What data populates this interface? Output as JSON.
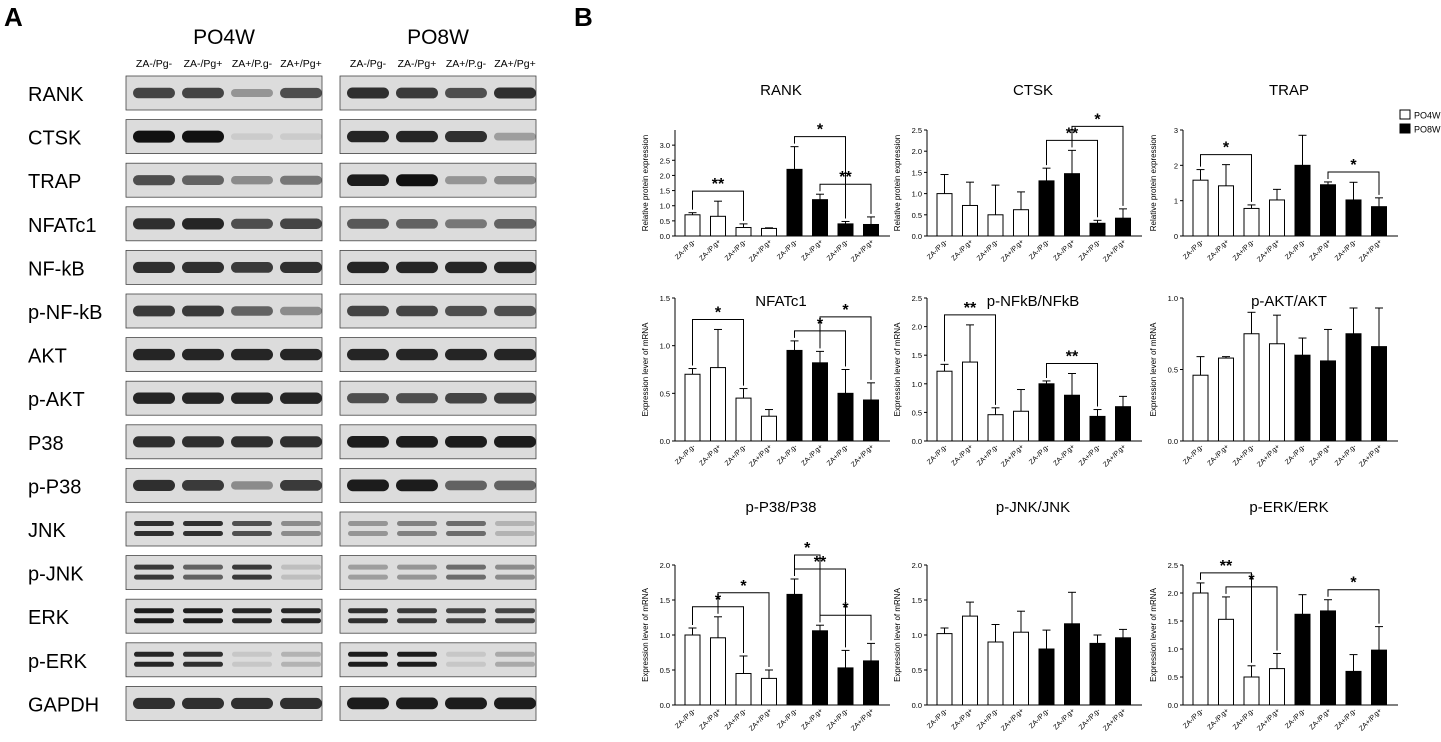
{
  "panels": {
    "a": "A",
    "b": "B"
  },
  "blot": {
    "groups": [
      {
        "title": "PO4W",
        "lanes": [
          "ZA-/Pg-",
          "ZA-/Pg+",
          "ZA+/P.g-",
          "ZA+/Pg+"
        ]
      },
      {
        "title": "PO8W",
        "lanes": [
          "ZA-/Pg-",
          "ZA-/Pg+",
          "ZA+/P.g-",
          "ZA+/Pg+"
        ]
      }
    ],
    "rows": [
      {
        "label": "RANK",
        "w4": [
          0.75,
          0.75,
          0.35,
          0.7
        ],
        "w8": [
          0.85,
          0.8,
          0.7,
          0.85
        ]
      },
      {
        "label": "CTSK",
        "w4": [
          1.0,
          1.0,
          0.08,
          0.08
        ],
        "w8": [
          0.9,
          0.9,
          0.85,
          0.3
        ]
      },
      {
        "label": "TRAP",
        "w4": [
          0.7,
          0.6,
          0.4,
          0.5
        ],
        "w8": [
          0.95,
          1.0,
          0.35,
          0.4
        ]
      },
      {
        "label": "NFATc1",
        "w4": [
          0.85,
          0.9,
          0.7,
          0.75
        ],
        "w8": [
          0.65,
          0.6,
          0.5,
          0.6
        ]
      },
      {
        "label": "NF-kB",
        "w4": [
          0.85,
          0.85,
          0.8,
          0.85
        ],
        "w8": [
          0.9,
          0.9,
          0.9,
          0.9
        ]
      },
      {
        "label": "p-NF-kB",
        "w4": [
          0.8,
          0.8,
          0.6,
          0.4
        ],
        "w8": [
          0.75,
          0.75,
          0.7,
          0.7
        ]
      },
      {
        "label": "AKT",
        "w4": [
          0.9,
          0.9,
          0.9,
          0.9
        ],
        "w8": [
          0.9,
          0.9,
          0.9,
          0.9
        ]
      },
      {
        "label": "p-AKT",
        "w4": [
          0.9,
          0.9,
          0.9,
          0.9
        ],
        "w8": [
          0.7,
          0.7,
          0.75,
          0.8
        ]
      },
      {
        "label": "P38",
        "w4": [
          0.85,
          0.85,
          0.85,
          0.85
        ],
        "w8": [
          0.95,
          0.95,
          0.95,
          0.95
        ]
      },
      {
        "label": "p-P38",
        "w4": [
          0.85,
          0.8,
          0.4,
          0.8
        ],
        "w8": [
          0.95,
          0.95,
          0.6,
          0.6
        ]
      },
      {
        "label": "JNK",
        "w4": [
          0.85,
          0.85,
          0.7,
          0.4
        ],
        "w8": [
          0.35,
          0.45,
          0.55,
          0.2
        ]
      },
      {
        "label": "p-JNK",
        "w4": [
          0.8,
          0.6,
          0.8,
          0.15
        ],
        "w8": [
          0.3,
          0.35,
          0.55,
          0.4
        ]
      },
      {
        "label": "ERK",
        "w4": [
          0.95,
          0.95,
          0.9,
          0.9
        ],
        "w8": [
          0.85,
          0.8,
          0.75,
          0.75
        ]
      },
      {
        "label": "p-ERK",
        "w4": [
          0.9,
          0.85,
          0.1,
          0.2
        ],
        "w8": [
          0.95,
          0.95,
          0.1,
          0.25
        ]
      },
      {
        "label": "GAPDH",
        "w4": [
          0.85,
          0.85,
          0.85,
          0.85
        ],
        "w8": [
          0.95,
          0.95,
          0.95,
          0.95
        ]
      }
    ]
  },
  "legend": [
    {
      "label": "PO4W",
      "fill": "#ffffff"
    },
    {
      "label": "PO8W",
      "fill": "#000000"
    }
  ],
  "chart_data": [
    {
      "type": "bar",
      "title": "RANK",
      "ylabel": "Relative protein expression",
      "categories": [
        "ZA-/P.g-",
        "ZA-/P.g+",
        "ZA+/P.g-",
        "ZA+/P.g+",
        "ZA-/P.g-",
        "ZA-/P.g+",
        "ZA+/P.g-",
        "ZA+/P.g+"
      ],
      "groups": [
        "PO4W",
        "PO4W",
        "PO4W",
        "PO4W",
        "PO8W",
        "PO8W",
        "PO8W",
        "PO8W"
      ],
      "values": [
        0.7,
        0.65,
        0.28,
        0.25,
        2.2,
        1.2,
        0.4,
        0.38
      ],
      "errors": [
        0.07,
        0.5,
        0.12,
        0.02,
        0.75,
        0.18,
        0.08,
        0.25
      ],
      "ylim": [
        0,
        3.5
      ],
      "yticks": [
        "0.0",
        "0.5",
        "1.0",
        "1.5",
        "2.0",
        "2.5",
        "3.0"
      ],
      "significance": [
        {
          "from": 0,
          "to": 2,
          "label": "**"
        },
        {
          "from": 4,
          "to": 6,
          "label": "*"
        },
        {
          "from": 5,
          "to": 7,
          "label": "**"
        }
      ]
    },
    {
      "type": "bar",
      "title": "CTSK",
      "ylabel": "Relative protein expression",
      "categories": [
        "ZA-/P.g-",
        "ZA-/P.g+",
        "ZA+/P.g-",
        "ZA+/P.g+",
        "ZA-/P.g-",
        "ZA-/P.g+",
        "ZA+/P.g-",
        "ZA+/P.g+"
      ],
      "groups": [
        "PO4W",
        "PO4W",
        "PO4W",
        "PO4W",
        "PO8W",
        "PO8W",
        "PO8W",
        "PO8W"
      ],
      "values": [
        1.0,
        0.72,
        0.5,
        0.62,
        1.3,
        1.47,
        0.3,
        0.42
      ],
      "errors": [
        0.45,
        0.55,
        0.7,
        0.42,
        0.3,
        0.55,
        0.07,
        0.22
      ],
      "ylim": [
        0,
        2.5
      ],
      "yticks": [
        "0.0",
        "0.5",
        "1.0",
        "1.5",
        "2.0",
        "2.5"
      ],
      "significance": [
        {
          "from": 4,
          "to": 6,
          "label": "**"
        },
        {
          "from": 5,
          "to": 7,
          "label": "*"
        }
      ]
    },
    {
      "type": "bar",
      "title": "TRAP",
      "ylabel": "Relative protein expression",
      "categories": [
        "ZA-/P.g-",
        "ZA-/P.g+",
        "ZA+/P.g-",
        "ZA+/P.g+",
        "ZA-/P.g-",
        "ZA-/P.g+",
        "ZA+/P.g-",
        "ZA+/P.g+"
      ],
      "groups": [
        "PO4W",
        "PO4W",
        "PO4W",
        "PO4W",
        "PO8W",
        "PO8W",
        "PO8W",
        "PO8W"
      ],
      "values": [
        1.58,
        1.42,
        0.78,
        1.02,
        2.0,
        1.45,
        1.02,
        0.83
      ],
      "errors": [
        0.3,
        0.6,
        0.1,
        0.3,
        0.85,
        0.08,
        0.5,
        0.25
      ],
      "ylim": [
        0,
        3
      ],
      "yticks": [
        "0",
        "1",
        "2",
        "3"
      ],
      "significance": [
        {
          "from": 0,
          "to": 2,
          "label": "*"
        },
        {
          "from": 5,
          "to": 7,
          "label": "*"
        }
      ]
    },
    {
      "type": "bar",
      "title": "NFATc1",
      "ylabel": "Expression lever of mRNA",
      "categories": [
        "ZA-/P.g-",
        "ZA-/P.g+",
        "ZA+/P.g-",
        "ZA+/P.g+",
        "ZA-/P.g-",
        "ZA-/P.g+",
        "ZA+/P.g-",
        "ZA+/P.g+"
      ],
      "groups": [
        "PO4W",
        "PO4W",
        "PO4W",
        "PO4W",
        "PO8W",
        "PO8W",
        "PO8W",
        "PO8W"
      ],
      "values": [
        0.7,
        0.77,
        0.45,
        0.26,
        0.95,
        0.82,
        0.5,
        0.43
      ],
      "errors": [
        0.06,
        0.4,
        0.1,
        0.07,
        0.1,
        0.12,
        0.25,
        0.18
      ],
      "ylim": [
        0,
        1.5
      ],
      "yticks": [
        "0.0",
        "0.5",
        "1.0",
        "1.5"
      ],
      "significance": [
        {
          "from": 0,
          "to": 2,
          "label": "*"
        },
        {
          "from": 4,
          "to": 6,
          "label": "*"
        },
        {
          "from": 5,
          "to": 7,
          "label": "*"
        }
      ]
    },
    {
      "type": "bar",
      "title": "p-NFkB/NFkB",
      "ylabel": "Expression lever of mRNA",
      "categories": [
        "ZA-/P.g-",
        "ZA-/P.g+",
        "ZA+/P.g-",
        "ZA+/P.g+",
        "ZA-/P.g-",
        "ZA-/P.g+",
        "ZA+/P.g-",
        "ZA+/P.g+"
      ],
      "groups": [
        "PO4W",
        "PO4W",
        "PO4W",
        "PO4W",
        "PO8W",
        "PO8W",
        "PO8W",
        "PO8W"
      ],
      "values": [
        1.22,
        1.38,
        0.46,
        0.52,
        1.0,
        0.8,
        0.43,
        0.6
      ],
      "errors": [
        0.12,
        0.65,
        0.12,
        0.38,
        0.05,
        0.38,
        0.12,
        0.18
      ],
      "ylim": [
        0,
        2.5
      ],
      "yticks": [
        "0.0",
        "0.5",
        "1.0",
        "1.5",
        "2.0",
        "2.5"
      ],
      "significance": [
        {
          "from": 0,
          "to": 2,
          "label": "**"
        },
        {
          "from": 4,
          "to": 6,
          "label": "**"
        }
      ]
    },
    {
      "type": "bar",
      "title": "p-AKT/AKT",
      "ylabel": "Expression lever of mRNA",
      "categories": [
        "ZA-/P.g-",
        "ZA-/P.g+",
        "ZA+/P.g-",
        "ZA+/P.g+",
        "ZA-/P.g-",
        "ZA-/P.g+",
        "ZA+/P.g-",
        "ZA+/P.g+"
      ],
      "groups": [
        "PO4W",
        "PO4W",
        "PO4W",
        "PO4W",
        "PO8W",
        "PO8W",
        "PO8W",
        "PO8W"
      ],
      "values": [
        0.46,
        0.58,
        0.75,
        0.68,
        0.6,
        0.56,
        0.75,
        0.66
      ],
      "errors": [
        0.13,
        0.01,
        0.15,
        0.2,
        0.12,
        0.22,
        0.18,
        0.27
      ],
      "ylim": [
        0,
        1.0
      ],
      "yticks": [
        "0.0",
        "0.5",
        "1.0"
      ],
      "significance": []
    },
    {
      "type": "bar",
      "title": "p-P38/P38",
      "ylabel": "Expression lever of mRNA",
      "categories": [
        "ZA-/P.g-",
        "ZA-/P.g+",
        "ZA+/P.g-",
        "ZA+/P.g+",
        "ZA-/P.g-",
        "ZA-/P.g+",
        "ZA+/P.g-",
        "ZA+/P.g+"
      ],
      "groups": [
        "PO4W",
        "PO4W",
        "PO4W",
        "PO4W",
        "PO8W",
        "PO8W",
        "PO8W",
        "PO8W"
      ],
      "values": [
        1.0,
        0.96,
        0.45,
        0.38,
        1.58,
        1.06,
        0.53,
        0.63
      ],
      "errors": [
        0.1,
        0.3,
        0.25,
        0.12,
        0.22,
        0.08,
        0.25,
        0.25
      ],
      "ylim": [
        0,
        2.0
      ],
      "yticks": [
        "0.0",
        "0.5",
        "1.0",
        "1.5",
        "2.0"
      ],
      "significance": [
        {
          "from": 0,
          "to": 2,
          "label": "*"
        },
        {
          "from": 1,
          "to": 3,
          "label": "*"
        },
        {
          "from": 4,
          "to": 6,
          "label": "**"
        },
        {
          "from": 5,
          "to": 7,
          "label": "*"
        },
        {
          "from": 4,
          "to": 5,
          "label": "*"
        }
      ]
    },
    {
      "type": "bar",
      "title": "p-JNK/JNK",
      "ylabel": "Expression lever of mRNA",
      "categories": [
        "ZA-/P.g-",
        "ZA-/P.g+",
        "ZA+/P.g-",
        "ZA+/P.g+",
        "ZA-/P.g-",
        "ZA-/P.g+",
        "ZA+/P.g-",
        "ZA+/P.g+"
      ],
      "groups": [
        "PO4W",
        "PO4W",
        "PO4W",
        "PO4W",
        "PO8W",
        "PO8W",
        "PO8W",
        "PO8W"
      ],
      "values": [
        1.02,
        1.27,
        0.9,
        1.04,
        0.8,
        1.16,
        0.88,
        0.96
      ],
      "errors": [
        0.08,
        0.2,
        0.25,
        0.3,
        0.27,
        0.45,
        0.12,
        0.12
      ],
      "ylim": [
        0,
        2.0
      ],
      "yticks": [
        "0.0",
        "0.5",
        "1.0",
        "1.5",
        "2.0"
      ],
      "significance": []
    },
    {
      "type": "bar",
      "title": "p-ERK/ERK",
      "ylabel": "Expression lever of mRNA",
      "categories": [
        "ZA-/P.g-",
        "ZA-/P.g+",
        "ZA+/P.g-",
        "ZA+/P.g+",
        "ZA-/P.g-",
        "ZA-/P.g+",
        "ZA+/P.g-",
        "ZA+/P.g+"
      ],
      "groups": [
        "PO4W",
        "PO4W",
        "PO4W",
        "PO4W",
        "PO8W",
        "PO8W",
        "PO8W",
        "PO8W"
      ],
      "values": [
        2.0,
        1.53,
        0.5,
        0.65,
        1.62,
        1.68,
        0.6,
        0.98
      ],
      "errors": [
        0.18,
        0.4,
        0.2,
        0.27,
        0.35,
        0.2,
        0.3,
        0.42
      ],
      "ylim": [
        0,
        2.5
      ],
      "yticks": [
        "0.0",
        "0.5",
        "1.0",
        "1.5",
        "2.0",
        "2.5"
      ],
      "significance": [
        {
          "from": 0,
          "to": 2,
          "label": "**"
        },
        {
          "from": 1,
          "to": 3,
          "label": "*"
        },
        {
          "from": 5,
          "to": 7,
          "label": "*"
        }
      ]
    }
  ]
}
